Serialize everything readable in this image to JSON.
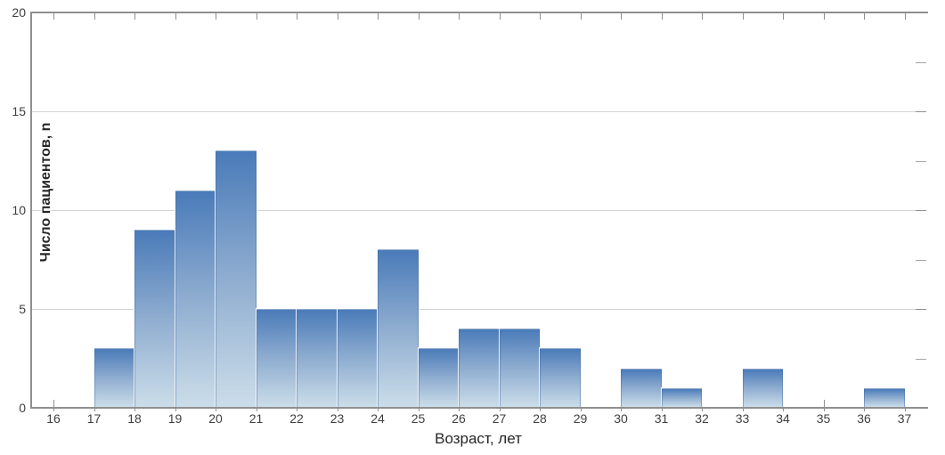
{
  "chart_data": {
    "type": "bar",
    "subtype": "histogram",
    "title": "",
    "xlabel": "Возраст, лет",
    "ylabel": "Число пациентов, n",
    "bin_width": 1,
    "bin_starts": [
      17,
      18,
      19,
      20,
      21,
      22,
      23,
      24,
      25,
      26,
      27,
      28,
      29,
      30,
      31,
      32,
      33,
      34,
      35,
      36
    ],
    "values": [
      3,
      9,
      11,
      13,
      5,
      5,
      5,
      8,
      3,
      4,
      4,
      3,
      0,
      2,
      1,
      0,
      2,
      0,
      0,
      1
    ],
    "x_tick_labels": [
      "16",
      "17",
      "18",
      "19",
      "20",
      "21",
      "22",
      "23",
      "24",
      "25",
      "26",
      "27",
      "28",
      "29",
      "30",
      "31",
      "32",
      "33",
      "34",
      "35",
      "36",
      "37"
    ],
    "x_tick_values": [
      16,
      17,
      18,
      19,
      20,
      21,
      22,
      23,
      24,
      25,
      26,
      27,
      28,
      29,
      30,
      31,
      32,
      33,
      34,
      35,
      36,
      37
    ],
    "y_tick_labels": [
      "0",
      "5",
      "10",
      "15",
      "20"
    ],
    "y_tick_values": [
      0,
      5,
      10,
      15,
      20
    ],
    "y_minor_ticks_right": [
      2.5,
      7.5,
      12.5,
      17.5
    ],
    "ylim": [
      0,
      20
    ],
    "xlim": [
      15.45,
      37.5
    ],
    "grid": "horizontal-only",
    "legend": "none",
    "colors": {
      "bar_gradient_top": "#4a7bb9",
      "bar_gradient_mid": "#8fadd0",
      "bar_gradient_bottom": "#cbdde9",
      "grid_line": "#d4d4d4",
      "axis_line": "#8f8f8f",
      "minor_tick": "#a5a5a5",
      "tick_label": "#3f3f3f",
      "axis_title": "#262626"
    }
  }
}
